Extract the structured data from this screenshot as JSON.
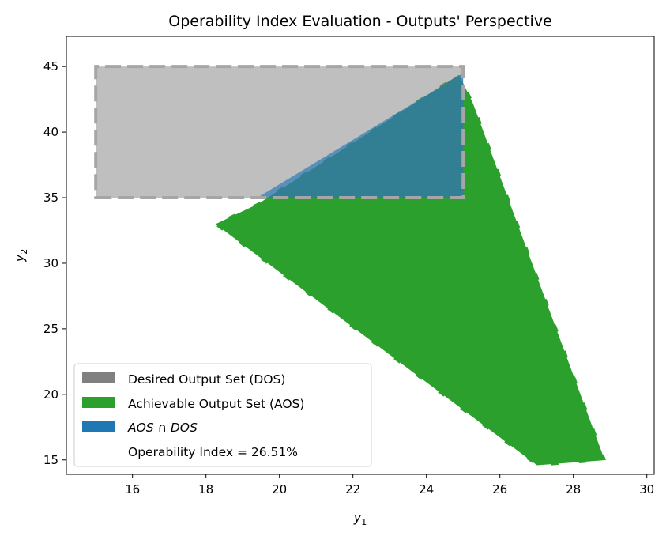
{
  "chart_data": {
    "type": "area",
    "title": "Operability Index Evaluation - Outputs' Perspective",
    "xlabel": "y",
    "xlabel_sub": "1",
    "ylabel": "y",
    "ylabel_sub": "2",
    "xlim": [
      14.2,
      30.2
    ],
    "ylim": [
      13.9,
      47.3
    ],
    "xticks": [
      16,
      18,
      20,
      22,
      24,
      26,
      28,
      30
    ],
    "yticks": [
      15,
      20,
      25,
      30,
      35,
      40,
      45
    ],
    "grid": false,
    "legend_position": "lower-left",
    "regions": [
      {
        "name": "Desired Output Set (DOS)",
        "color": "#808080",
        "fill_alpha": 0.5,
        "edge_color": "#a6a6a6",
        "polygon": [
          [
            15,
            35
          ],
          [
            25,
            35
          ],
          [
            25,
            45
          ],
          [
            15,
            45
          ]
        ]
      },
      {
        "name": "Achievable Output Set (AOS)",
        "color": "#2ca02c",
        "fill_alpha": 1,
        "edge_color": "#ffffff",
        "polygon": [
          [
            24.9,
            44.5
          ],
          [
            25.3,
            42.2
          ],
          [
            28.9,
            14.9
          ],
          [
            27.0,
            14.5
          ],
          [
            18.2,
            33.0
          ],
          [
            19.4,
            34.6
          ],
          [
            24.9,
            44.5
          ]
        ]
      },
      {
        "name": "AOS ∩ DOS",
        "legend_parts": [
          "AOS",
          " ∩ ",
          "DOS"
        ],
        "color": "#1f77b4",
        "fill_alpha": 0.65,
        "polygon": [
          [
            19.4,
            35
          ],
          [
            25,
            35
          ],
          [
            25,
            44.5
          ]
        ]
      }
    ],
    "annotation": "Operability Index = 26.51%",
    "operability_index": 26.51
  }
}
